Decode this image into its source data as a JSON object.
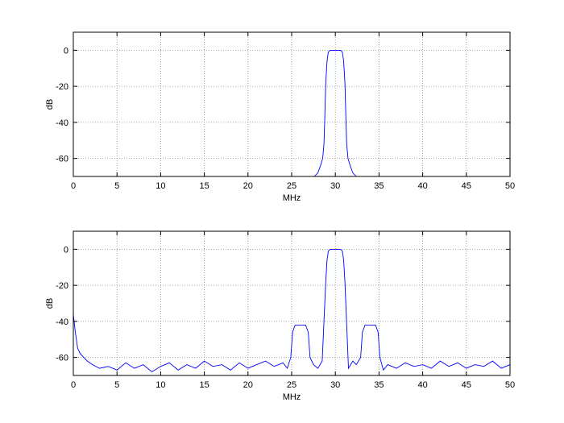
{
  "chart_data": [
    {
      "type": "line",
      "title": "",
      "xlabel": "MHz",
      "ylabel": "dB",
      "xlim": [
        0,
        50
      ],
      "ylim": [
        -70,
        10
      ],
      "xticks": [
        0,
        5,
        10,
        15,
        20,
        25,
        30,
        35,
        40,
        45,
        50
      ],
      "yticks": [
        0,
        -20,
        -40,
        -60
      ],
      "grid": true,
      "line_color": "#0000ff",
      "series": [
        {
          "x": [
            27.6,
            28.0,
            28.3,
            28.55,
            28.7,
            28.8,
            28.9,
            29.05,
            29.2,
            29.4,
            30.0,
            30.6,
            30.8,
            30.95,
            31.1,
            31.2,
            31.3,
            31.45,
            31.7,
            32.0,
            32.4
          ],
          "y": [
            -70,
            -68,
            -64,
            -60,
            -52,
            -36,
            -18,
            -6,
            -1,
            0,
            0,
            0,
            -1,
            -6,
            -18,
            -36,
            -52,
            -60,
            -64,
            -68,
            -70
          ]
        }
      ]
    },
    {
      "type": "line",
      "title": "",
      "xlabel": "MHz",
      "ylabel": "dB",
      "xlim": [
        0,
        50
      ],
      "ylim": [
        -70,
        10
      ],
      "xticks": [
        0,
        5,
        10,
        15,
        20,
        25,
        30,
        35,
        40,
        45,
        50
      ],
      "yticks": [
        0,
        -20,
        -40,
        -60
      ],
      "grid": true,
      "line_color": "#0000ff",
      "series": [
        {
          "x": [
            0,
            0.2,
            0.5,
            0.8,
            1.2,
            1.6,
            2.2,
            3,
            4,
            5,
            6,
            7,
            8,
            9,
            10,
            11,
            12,
            13,
            14,
            15,
            16,
            17,
            18,
            19,
            20,
            21,
            22,
            23,
            24,
            24.5,
            24.9,
            25.1,
            25.4,
            26.0,
            26.6,
            26.9,
            27.1,
            27.5,
            28,
            28.5,
            28.9,
            29.05,
            29.2,
            29.4,
            30.0,
            30.6,
            30.8,
            30.95,
            31.1,
            31.5,
            32,
            32.4,
            32.9,
            33.1,
            33.4,
            34.0,
            34.6,
            34.9,
            35.1,
            35.5,
            36,
            37,
            38,
            39,
            40,
            41,
            42,
            43,
            44,
            45,
            46,
            47,
            48,
            49,
            50
          ],
          "y": [
            -36,
            -45,
            -55,
            -58,
            -60,
            -62,
            -64,
            -66,
            -65,
            -67,
            -63,
            -66,
            -64,
            -68,
            -65,
            -63,
            -67,
            -64,
            -66,
            -62,
            -65,
            -64,
            -67,
            -63,
            -66,
            -64,
            -62,
            -65,
            -63,
            -66,
            -60,
            -46,
            -42,
            -42,
            -42,
            -46,
            -60,
            -64,
            -66,
            -62,
            -18,
            -6,
            -1,
            0,
            0,
            0,
            -1,
            -6,
            -18,
            -66,
            -62,
            -64,
            -60,
            -46,
            -42,
            -42,
            -42,
            -46,
            -60,
            -67,
            -64,
            -66,
            -63,
            -65,
            -64,
            -66,
            -62,
            -65,
            -63,
            -66,
            -64,
            -65,
            -62,
            -66,
            -64
          ]
        }
      ]
    }
  ]
}
